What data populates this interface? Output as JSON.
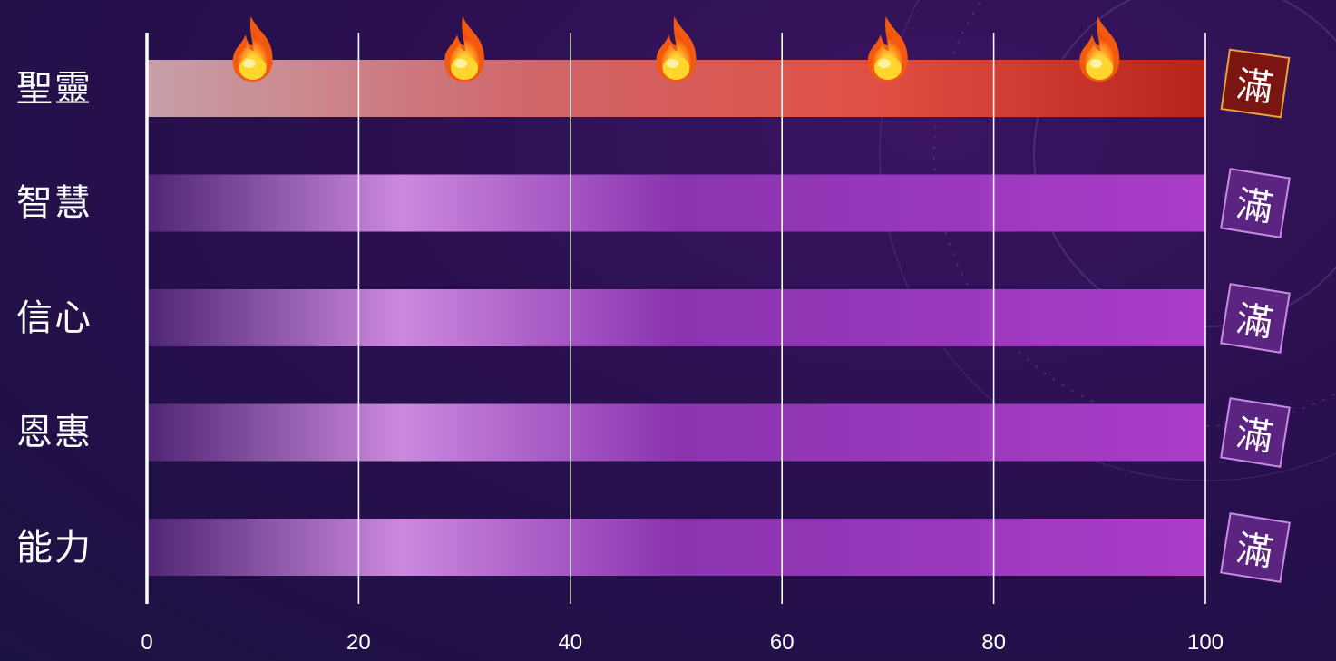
{
  "colors": {
    "holy_gradient": [
      "#c7a0a8",
      "#d06468",
      "#e24a40",
      "#b8231a"
    ],
    "purple_gradient": [
      "#4f2673",
      "#cc89de",
      "#8a34b0",
      "#a93cc6"
    ],
    "grid": "#ffffff",
    "badge_purple": "#5b2480",
    "badge_red": "#7a1512"
  },
  "chart_data": {
    "type": "bar",
    "orientation": "horizontal",
    "categories": [
      "聖靈",
      "智慧",
      "信心",
      "恩惠",
      "能力"
    ],
    "values": [
      100,
      100,
      100,
      100,
      100
    ],
    "xlim": [
      0,
      100
    ],
    "x_ticks": [
      "0",
      "20",
      "40",
      "60",
      "80",
      "100"
    ],
    "grid": true,
    "badges": [
      "滿",
      "滿",
      "滿",
      "滿",
      "滿"
    ],
    "flame_icons": {
      "category": "聖靈",
      "x": [
        10,
        30,
        50,
        70,
        90
      ]
    }
  }
}
